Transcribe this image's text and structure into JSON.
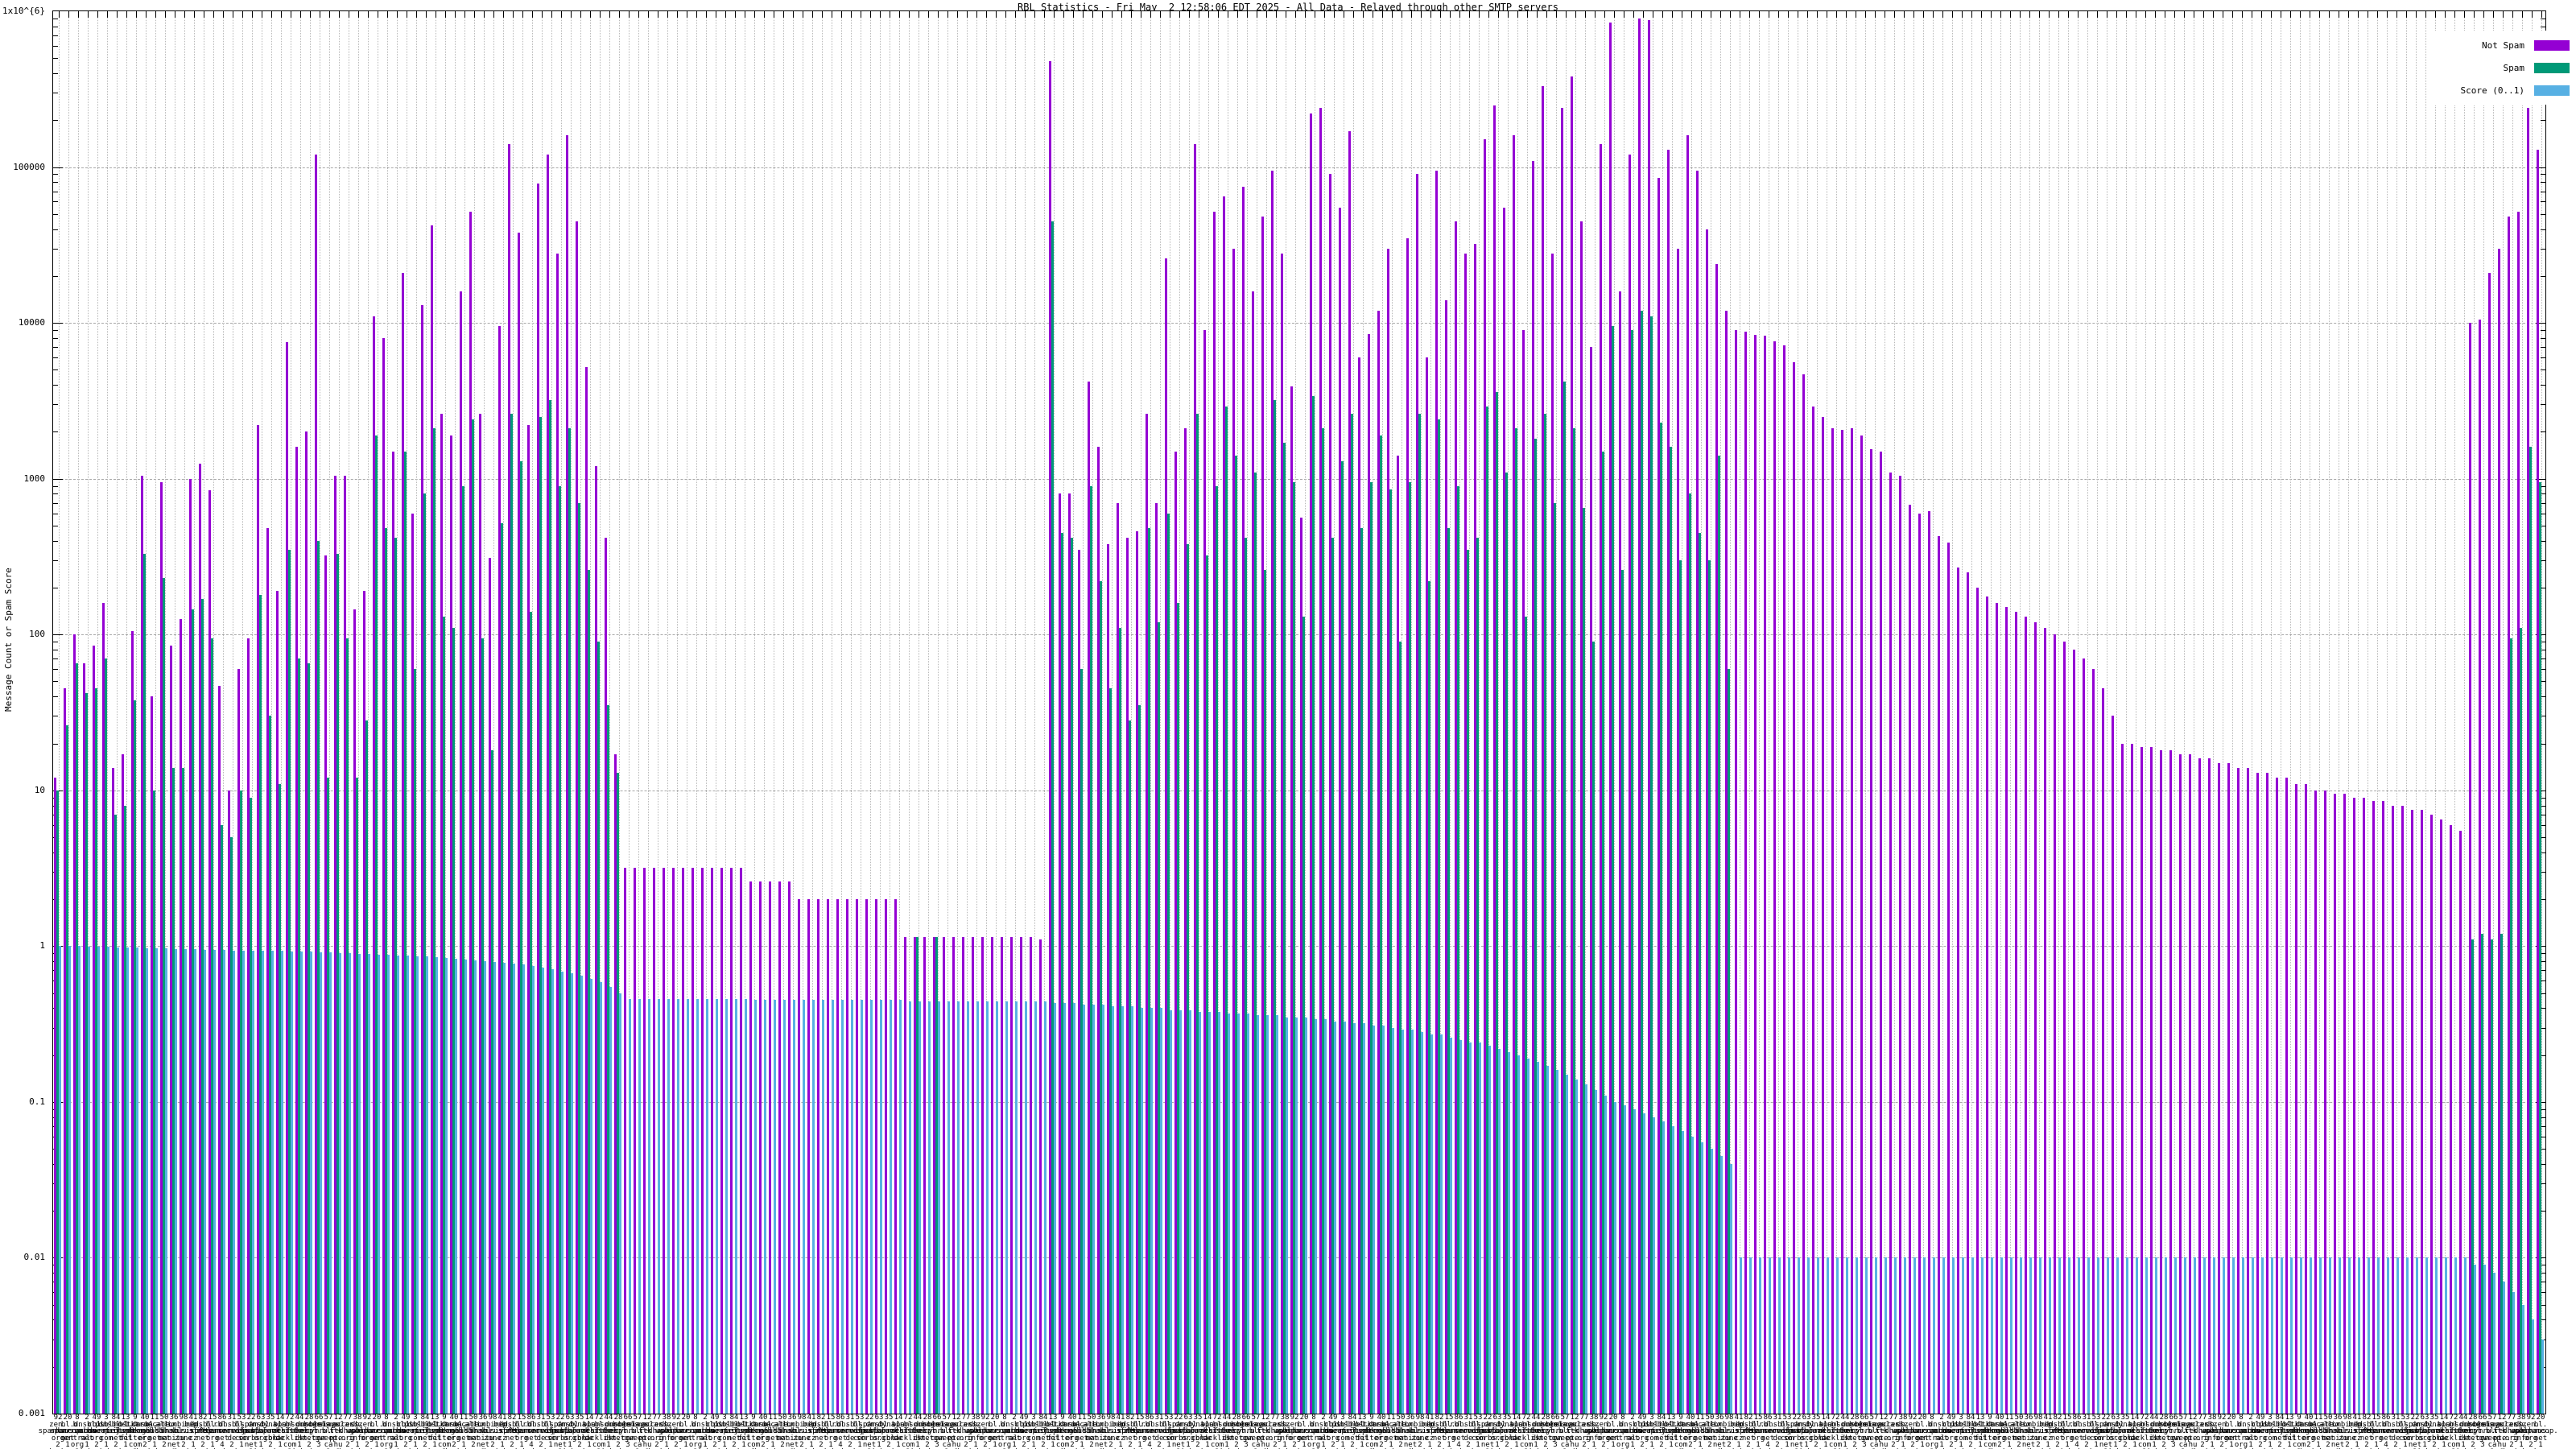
{
  "title": "RBL Statistics - Fri May  2 12:58:06 EDT 2025 - All Data - Relayed through other SMTP servers",
  "y_axis": {
    "label": "Message Count or Spam Score",
    "scale": "log",
    "min": 0.001,
    "max": 1000000,
    "tick_labels": [
      "1x10^{6}",
      "100000",
      "10000",
      "1000",
      "100",
      "10",
      "1",
      "0.1",
      "0.01",
      "0.001"
    ]
  },
  "legend": {
    "position": "top-right",
    "items": [
      {
        "label": "Not Spam",
        "color": "#9400d3"
      },
      {
        "label": "Spam",
        "color": "#009977"
      },
      {
        "label": "Score (0..1)",
        "color": "#57b0e3"
      }
    ]
  },
  "x_axis": {
    "labels_legible": false,
    "labels_pool": [
      "92 zen. spamhaus. org 2 hops",
      "20 bl. spamcop. net 1 hop",
      "8 b. barracuda central. org 2 hops",
      "2 dnsbl. sorbs. net 1 hop",
      "49 cbl. abuseat. org 2 hops",
      "3 psbl. surriel. com 1 hop",
      "84 dnsbl-1. uceprotect. net 2 hops",
      "13 bl. mailspike. net 1 hop",
      "9 hostkarma. junkemail filter. com 3 hops",
      "40 dnsbl. dronebl. org 2 hops",
      "11 truncate. gbudb. net 1 hop",
      "50 all. s5h. net 2 hops",
      "36 ix. dnsbl. manitu. net 1 hop",
      "98 combined. abusix. zone 2 hops",
      "41 bip. virusfree. cz 1 hop",
      "82 dnsbl. spfbl. net 2 hops",
      "15 bl. 0spam. org 1 hop",
      "86 rbl. interserver. net 4 hops",
      "31 dnsbl. anonmails. de 2 hops",
      "53 bl. nordspam. com 1 hop",
      "22 spam. dnsbl. sorbs. net 2 hops",
      "63 dnsbl. justspam. org 1 hop",
      "35 dyna. spamrats. com 2 hops",
      "14 bl. blocklist. de 1 hop",
      "72 rbl. realtime blacklist. com 2 hops",
      "44 spamsources. fabel. dk 1 hop",
      "28 dnsbl. kempt. net 2 hops",
      "66 bogons. cymru. com 3 hops",
      "57 relays. bl. gweep. ca 2 hops",
      "12 singular. ttk. pte. hu 1 hop",
      "77 access. redhawk. org 2 hops",
      "38 db. wpbl. info 1 hop"
    ]
  },
  "chart_data": {
    "type": "bar",
    "title": "RBL Statistics - Fri May  2 12:58:06 EDT 2025 - All Data - Relayed through other SMTP servers",
    "ylabel": "Message Count or Spam Score",
    "ylim": [
      0.001,
      1000000
    ],
    "log_scale": true,
    "grid": true,
    "legend_position": "top-right",
    "series_names": [
      "Not Spam",
      "Spam",
      "Score (0..1)"
    ],
    "clusters": [
      [
        12,
        10,
        1.0
      ],
      [
        45,
        26,
        1.0
      ],
      [
        100,
        65,
        1.0
      ],
      [
        65,
        42,
        0.99
      ],
      [
        85,
        45,
        0.99
      ],
      [
        160,
        70,
        0.99
      ],
      [
        14,
        7,
        0.98
      ],
      [
        17,
        8,
        0.98
      ],
      [
        105,
        38,
        0.98
      ],
      [
        1050,
        330,
        0.97
      ],
      [
        40,
        10,
        0.97
      ],
      [
        950,
        230,
        0.97
      ],
      [
        85,
        14,
        0.96
      ],
      [
        125,
        14,
        0.96
      ],
      [
        1000,
        145,
        0.96
      ],
      [
        1250,
        170,
        0.95
      ],
      [
        840,
        95,
        0.95
      ],
      [
        47,
        6,
        0.95
      ],
      [
        10,
        5,
        0.94
      ],
      [
        60,
        10,
        0.94
      ],
      [
        95,
        9,
        0.94
      ],
      [
        2200,
        180,
        0.93
      ],
      [
        480,
        30,
        0.93
      ],
      [
        190,
        11,
        0.93
      ],
      [
        7500,
        350,
        0.92
      ],
      [
        1600,
        70,
        0.92
      ],
      [
        2000,
        65,
        0.92
      ],
      [
        120000,
        400,
        0.91
      ],
      [
        320,
        12,
        0.91
      ],
      [
        1050,
        330,
        0.9
      ],
      [
        1050,
        95,
        0.9
      ],
      [
        145,
        12,
        0.89
      ],
      [
        190,
        28,
        0.89
      ],
      [
        11000,
        1900,
        0.88
      ],
      [
        8000,
        480,
        0.88
      ],
      [
        1500,
        420,
        0.87
      ],
      [
        21000,
        1500,
        0.87
      ],
      [
        600,
        60,
        0.86
      ],
      [
        13000,
        800,
        0.86
      ],
      [
        42000,
        2100,
        0.85
      ],
      [
        2600,
        130,
        0.84
      ],
      [
        1900,
        110,
        0.83
      ],
      [
        16000,
        900,
        0.82
      ],
      [
        52000,
        2400,
        0.81
      ],
      [
        2600,
        95,
        0.8
      ],
      [
        310,
        18,
        0.79
      ],
      [
        9500,
        520,
        0.78
      ],
      [
        140000,
        2600,
        0.77
      ],
      [
        38000,
        1300,
        0.76
      ],
      [
        2200,
        140,
        0.75
      ],
      [
        78000,
        2500,
        0.73
      ],
      [
        120000,
        3200,
        0.71
      ],
      [
        28000,
        900,
        0.69
      ],
      [
        160000,
        2100,
        0.67
      ],
      [
        45000,
        700,
        0.65
      ],
      [
        5200,
        260,
        0.62
      ],
      [
        1200,
        90,
        0.59
      ],
      [
        420,
        35,
        0.55
      ],
      [
        17,
        13,
        0.5
      ],
      [
        3.2,
        0,
        0.46
      ],
      [
        3.2,
        0,
        0.46
      ],
      [
        3.2,
        0,
        0.46
      ],
      [
        3.2,
        0,
        0.46
      ],
      [
        3.2,
        0,
        0.46
      ],
      [
        3.2,
        0,
        0.46
      ],
      [
        3.2,
        0,
        0.46
      ],
      [
        3.2,
        0,
        0.46
      ],
      [
        3.2,
        0,
        0.46
      ],
      [
        3.2,
        0,
        0.46
      ],
      [
        3.2,
        0,
        0.46
      ],
      [
        3.2,
        0,
        0.46
      ],
      [
        3.2,
        0,
        0.46
      ],
      [
        2.6,
        0,
        0.45
      ],
      [
        2.6,
        0,
        0.45
      ],
      [
        2.6,
        0,
        0.45
      ],
      [
        2.6,
        0,
        0.45
      ],
      [
        2.6,
        0,
        0.45
      ],
      [
        2.0,
        0,
        0.45
      ],
      [
        2.0,
        0,
        0.45
      ],
      [
        2.0,
        0,
        0.45
      ],
      [
        2.0,
        0,
        0.45
      ],
      [
        2.0,
        0,
        0.45
      ],
      [
        2.0,
        0,
        0.45
      ],
      [
        2.0,
        0,
        0.45
      ],
      [
        2.0,
        0,
        0.45
      ],
      [
        2.0,
        0,
        0.45
      ],
      [
        2.0,
        0,
        0.45
      ],
      [
        2.0,
        0,
        0.45
      ],
      [
        1.15,
        0,
        0.44
      ],
      [
        1.15,
        1.15,
        0.44
      ],
      [
        1.15,
        0,
        0.44
      ],
      [
        1.15,
        1.15,
        0.44
      ],
      [
        1.15,
        0,
        0.44
      ],
      [
        1.15,
        0,
        0.44
      ],
      [
        1.15,
        0,
        0.44
      ],
      [
        1.15,
        0,
        0.44
      ],
      [
        1.15,
        0,
        0.44
      ],
      [
        1.15,
        0,
        0.44
      ],
      [
        1.15,
        0,
        0.44
      ],
      [
        1.15,
        0,
        0.44
      ],
      [
        1.15,
        0,
        0.44
      ],
      [
        1.15,
        0,
        0.44
      ],
      [
        1.1,
        0,
        0.44
      ],
      [
        480000,
        45000,
        0.43
      ],
      [
        800,
        450,
        0.43
      ],
      [
        800,
        420,
        0.43
      ],
      [
        350,
        60,
        0.42
      ],
      [
        4200,
        900,
        0.42
      ],
      [
        1600,
        220,
        0.42
      ],
      [
        380,
        45,
        0.41
      ],
      [
        700,
        110,
        0.41
      ],
      [
        420,
        28,
        0.41
      ],
      [
        460,
        35,
        0.4
      ],
      [
        2600,
        480,
        0.4
      ],
      [
        700,
        120,
        0.4
      ],
      [
        26000,
        600,
        0.39
      ],
      [
        1500,
        160,
        0.39
      ],
      [
        2100,
        380,
        0.39
      ],
      [
        140000,
        2600,
        0.38
      ],
      [
        9000,
        320,
        0.38
      ],
      [
        52000,
        900,
        0.38
      ],
      [
        65000,
        2900,
        0.37
      ],
      [
        30000,
        1400,
        0.37
      ],
      [
        75000,
        420,
        0.37
      ],
      [
        16000,
        1100,
        0.36
      ],
      [
        48000,
        260,
        0.36
      ],
      [
        95000,
        3200,
        0.36
      ],
      [
        28000,
        1700,
        0.35
      ],
      [
        3900,
        950,
        0.35
      ],
      [
        560,
        130,
        0.35
      ],
      [
        220000,
        3400,
        0.34
      ],
      [
        240000,
        2100,
        0.34
      ],
      [
        90000,
        420,
        0.33
      ],
      [
        55000,
        1300,
        0.33
      ],
      [
        170000,
        2600,
        0.32
      ],
      [
        6000,
        480,
        0.32
      ],
      [
        8500,
        950,
        0.31
      ],
      [
        12000,
        1900,
        0.31
      ],
      [
        30000,
        850,
        0.3
      ],
      [
        1400,
        90,
        0.29
      ],
      [
        35000,
        950,
        0.29
      ],
      [
        90000,
        2600,
        0.28
      ],
      [
        6000,
        220,
        0.27
      ],
      [
        95000,
        2400,
        0.27
      ],
      [
        14000,
        480,
        0.26
      ],
      [
        45000,
        900,
        0.25
      ],
      [
        28000,
        350,
        0.24
      ],
      [
        32000,
        420,
        0.24
      ],
      [
        150000,
        2900,
        0.23
      ],
      [
        250000,
        3600,
        0.22
      ],
      [
        55000,
        1100,
        0.21
      ],
      [
        160000,
        2100,
        0.2
      ],
      [
        9000,
        130,
        0.19
      ],
      [
        110000,
        1800,
        0.18
      ],
      [
        330000,
        2600,
        0.17
      ],
      [
        28000,
        700,
        0.16
      ],
      [
        240000,
        4200,
        0.15
      ],
      [
        380000,
        2100,
        0.14
      ],
      [
        45000,
        650,
        0.13
      ],
      [
        7000,
        90,
        0.12
      ],
      [
        140000,
        1500,
        0.11
      ],
      [
        850000,
        9500,
        0.1
      ],
      [
        16000,
        260,
        0.095
      ],
      [
        120000,
        9000,
        0.09
      ],
      [
        900000,
        12000,
        0.085
      ],
      [
        880000,
        11000,
        0.08
      ],
      [
        85000,
        2300,
        0.075
      ],
      [
        130000,
        1600,
        0.07
      ],
      [
        30000,
        300,
        0.065
      ],
      [
        160000,
        800,
        0.06
      ],
      [
        95000,
        450,
        0.055
      ],
      [
        40000,
        300,
        0.05
      ],
      [
        24000,
        1400,
        0.045
      ],
      [
        12000,
        60,
        0.04
      ],
      [
        9000,
        0,
        0.01
      ],
      [
        8800,
        0,
        0.01
      ],
      [
        8400,
        0,
        0.01
      ],
      [
        8300,
        0,
        0.01
      ],
      [
        7600,
        0,
        0.01
      ],
      [
        7200,
        0,
        0.01
      ],
      [
        5600,
        0,
        0.01
      ],
      [
        4700,
        0,
        0.01
      ],
      [
        2900,
        0,
        0.01
      ],
      [
        2500,
        0,
        0.01
      ],
      [
        2100,
        0,
        0.01
      ],
      [
        2050,
        0,
        0.01
      ],
      [
        2100,
        0,
        0.01
      ],
      [
        1900,
        0,
        0.01
      ],
      [
        1550,
        0,
        0.01
      ],
      [
        1500,
        0,
        0.01
      ],
      [
        1100,
        0,
        0.01
      ],
      [
        1050,
        0,
        0.01
      ],
      [
        680,
        0,
        0.01
      ],
      [
        600,
        0,
        0.01
      ],
      [
        620,
        0,
        0.01
      ],
      [
        430,
        0,
        0.01
      ],
      [
        390,
        0,
        0.01
      ],
      [
        270,
        0,
        0.01
      ],
      [
        250,
        0,
        0.01
      ],
      [
        200,
        0,
        0.01
      ],
      [
        175,
        0,
        0.01
      ],
      [
        160,
        0,
        0.01
      ],
      [
        150,
        0,
        0.01
      ],
      [
        140,
        0,
        0.01
      ],
      [
        130,
        0,
        0.01
      ],
      [
        120,
        0,
        0.01
      ],
      [
        110,
        0,
        0.01
      ],
      [
        100,
        0,
        0.01
      ],
      [
        90,
        0,
        0.01
      ],
      [
        80,
        0,
        0.01
      ],
      [
        70,
        0,
        0.01
      ],
      [
        60,
        0,
        0.01
      ],
      [
        45,
        0,
        0.01
      ],
      [
        30,
        0,
        0.01
      ],
      [
        20,
        0,
        0.01
      ],
      [
        20,
        0,
        0.01
      ],
      [
        19,
        0,
        0.01
      ],
      [
        19,
        0,
        0.01
      ],
      [
        18,
        0,
        0.01
      ],
      [
        18,
        0,
        0.01
      ],
      [
        17,
        0,
        0.01
      ],
      [
        17,
        0,
        0.01
      ],
      [
        16,
        0,
        0.01
      ],
      [
        16,
        0,
        0.01
      ],
      [
        15,
        0,
        0.01
      ],
      [
        15,
        0,
        0.01
      ],
      [
        14,
        0,
        0.01
      ],
      [
        14,
        0,
        0.01
      ],
      [
        13,
        0,
        0.01
      ],
      [
        13,
        0,
        0.01
      ],
      [
        12,
        0,
        0.01
      ],
      [
        12,
        0,
        0.01
      ],
      [
        11,
        0,
        0.01
      ],
      [
        11,
        0,
        0.01
      ],
      [
        10,
        0,
        0.01
      ],
      [
        10,
        0,
        0.01
      ],
      [
        9.5,
        0,
        0.01
      ],
      [
        9.5,
        0,
        0.01
      ],
      [
        9,
        0,
        0.01
      ],
      [
        9,
        0,
        0.01
      ],
      [
        8.5,
        0,
        0.01
      ],
      [
        8.5,
        0,
        0.01
      ],
      [
        8,
        0,
        0.01
      ],
      [
        8,
        0,
        0.01
      ],
      [
        7.5,
        0,
        0.01
      ],
      [
        7.5,
        0,
        0.01
      ],
      [
        7,
        0,
        0.01
      ],
      [
        6.5,
        0,
        0.01
      ],
      [
        6,
        0,
        0.01
      ],
      [
        5.5,
        0,
        0.01
      ],
      [
        10000,
        1.1,
        0.009
      ],
      [
        10500,
        1.2,
        0.009
      ],
      [
        21000,
        1.1,
        0.008
      ],
      [
        30000,
        1.2,
        0.007
      ],
      [
        48000,
        95,
        0.006
      ],
      [
        52000,
        110,
        0.005
      ],
      [
        240000,
        1600,
        0.004
      ],
      [
        130000,
        950,
        0.003
      ]
    ]
  }
}
